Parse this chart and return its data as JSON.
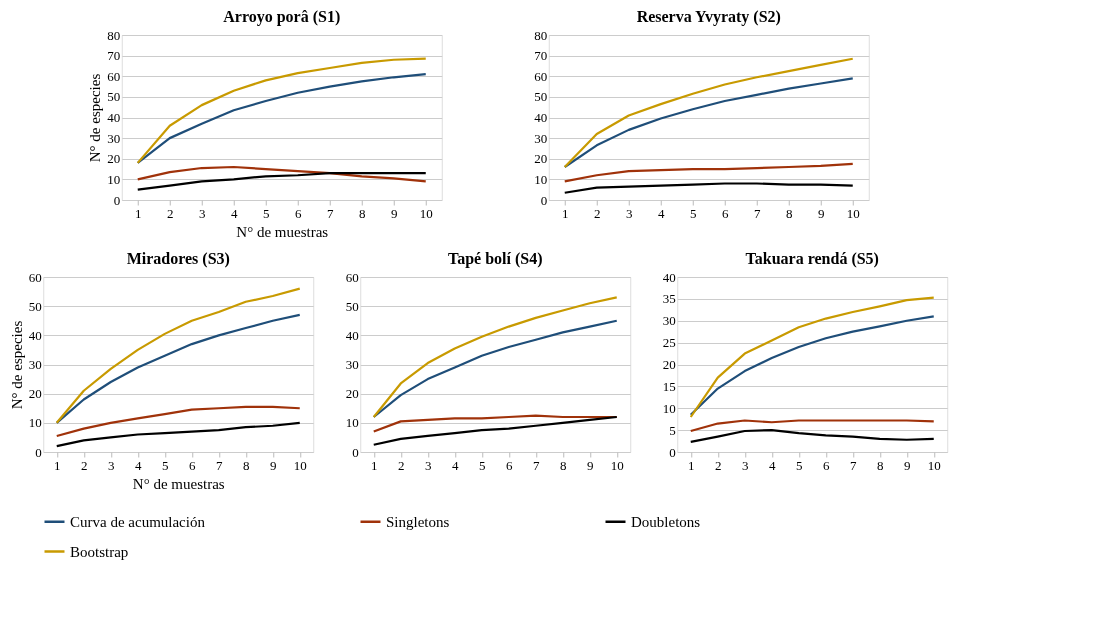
{
  "chart_data": [
    {
      "type": "line",
      "title": "Arroyo  porâ (S1)",
      "xlabel": "N° de muestras",
      "ylabel": "N° de especies",
      "categories": [
        "1",
        "2",
        "3",
        "4",
        "5",
        "6",
        "7",
        "8",
        "9",
        "10"
      ],
      "ylim": [
        0,
        80
      ],
      "yticks": [
        0,
        10,
        20,
        30,
        40,
        50,
        60,
        70,
        80
      ],
      "grid": "y",
      "legend": "bottom",
      "marker": "none",
      "line_style": "solid",
      "series": [
        {
          "name": "Curva de acumulación",
          "color": "#1f4e79",
          "values": [
            18,
            30,
            37,
            43.5,
            48,
            52,
            55,
            57.5,
            59.5,
            61
          ]
        },
        {
          "name": "Singletons",
          "color": "#a0320a",
          "values": [
            10,
            13.5,
            15.5,
            16,
            15,
            14,
            13,
            11.5,
            10.5,
            9
          ]
        },
        {
          "name": "Doubletons",
          "color": "#000000",
          "values": [
            5,
            7,
            9,
            10,
            11.5,
            12,
            13,
            13,
            13,
            13
          ]
        },
        {
          "name": "Bootstrap",
          "color": "#c89a00",
          "values": [
            18,
            36,
            46,
            53,
            58,
            61.5,
            64,
            66.5,
            68,
            68.5
          ]
        }
      ]
    },
    {
      "type": "line",
      "title": "Reserva Yvyraty  (S2)",
      "categories": [
        "1",
        "2",
        "3",
        "4",
        "5",
        "6",
        "7",
        "8",
        "9",
        "10"
      ],
      "ylim": [
        0,
        80
      ],
      "yticks": [
        0,
        10,
        20,
        30,
        40,
        50,
        60,
        70,
        80
      ],
      "grid": "y",
      "legend": "bottom",
      "marker": "none",
      "line_style": "solid",
      "series": [
        {
          "name": "Curva de acumulación",
          "color": "#1f4e79",
          "values": [
            16,
            26.5,
            34,
            39.5,
            44,
            48,
            51,
            54,
            56.5,
            59
          ]
        },
        {
          "name": "Singletons",
          "color": "#a0320a",
          "values": [
            9,
            12,
            14,
            14.5,
            15,
            15,
            15.5,
            16,
            16.5,
            17.5
          ]
        },
        {
          "name": "Doubletons",
          "color": "#000000",
          "values": [
            3.5,
            6,
            6.5,
            7,
            7.5,
            8,
            8,
            7.5,
            7.5,
            7
          ]
        },
        {
          "name": "Bootstrap",
          "color": "#c89a00",
          "values": [
            16,
            32,
            41,
            46.5,
            51.5,
            56,
            59.5,
            62.5,
            65.5,
            68.5
          ]
        }
      ]
    },
    {
      "type": "line",
      "title": "Miradores  (S3)",
      "xlabel": "N° de muestras",
      "ylabel": "N° de especies",
      "categories": [
        "1",
        "2",
        "3",
        "4",
        "5",
        "6",
        "7",
        "8",
        "9",
        "10"
      ],
      "ylim": [
        0,
        60
      ],
      "yticks": [
        0,
        10,
        20,
        30,
        40,
        50,
        60
      ],
      "grid": "y",
      "legend": "bottom",
      "marker": "none",
      "line_style": "solid",
      "series": [
        {
          "name": "Curva de acumulación",
          "color": "#1f4e79",
          "values": [
            10,
            18,
            24,
            29,
            33,
            37,
            40,
            42.5,
            45,
            47
          ]
        },
        {
          "name": "Singletons",
          "color": "#a0320a",
          "values": [
            5.5,
            8,
            10,
            11.5,
            13,
            14.5,
            15,
            15.5,
            15.5,
            15
          ]
        },
        {
          "name": "Doubletons",
          "color": "#000000",
          "values": [
            2,
            4,
            5,
            6,
            6.5,
            7,
            7.5,
            8.5,
            9,
            10
          ]
        },
        {
          "name": "Bootstrap",
          "color": "#c89a00",
          "values": [
            10,
            21,
            28.5,
            35,
            40.5,
            45,
            48,
            51.5,
            53.5,
            56
          ]
        }
      ]
    },
    {
      "type": "line",
      "title": "Tapé bolí (S4)",
      "categories": [
        "1",
        "2",
        "3",
        "4",
        "5",
        "6",
        "7",
        "8",
        "9",
        "10"
      ],
      "ylim": [
        0,
        60
      ],
      "yticks": [
        0,
        10,
        20,
        30,
        40,
        50,
        60
      ],
      "grid": "y",
      "legend": "bottom",
      "marker": "none",
      "line_style": "solid",
      "series": [
        {
          "name": "Curva de acumulación",
          "color": "#1f4e79",
          "values": [
            12,
            19.5,
            25,
            29,
            33,
            36,
            38.5,
            41,
            43,
            45
          ]
        },
        {
          "name": "Singletons",
          "color": "#a0320a",
          "values": [
            7,
            10.5,
            11,
            11.5,
            11.5,
            12,
            12.5,
            12,
            12,
            12
          ]
        },
        {
          "name": "Doubletons",
          "color": "#000000",
          "values": [
            2.5,
            4.5,
            5.5,
            6.5,
            7.5,
            8,
            9,
            10,
            11,
            12
          ]
        },
        {
          "name": "Bootstrap",
          "color": "#c89a00",
          "values": [
            12,
            23.5,
            30.5,
            35.5,
            39.5,
            43,
            46,
            48.5,
            51,
            53
          ]
        }
      ]
    },
    {
      "type": "line",
      "title": "Takuara rendá (S5)",
      "categories": [
        "1",
        "2",
        "3",
        "4",
        "5",
        "6",
        "7",
        "8",
        "9",
        "10"
      ],
      "ylim": [
        0,
        40
      ],
      "yticks": [
        0,
        5,
        10,
        15,
        20,
        25,
        30,
        35,
        40
      ],
      "grid": "y",
      "legend": "bottom",
      "marker": "none",
      "line_style": "solid",
      "series": [
        {
          "name": "Curva de acumulación",
          "color": "#1f4e79",
          "values": [
            8.5,
            14.5,
            18.5,
            21.5,
            24,
            26,
            27.5,
            28.7,
            30,
            31
          ]
        },
        {
          "name": "Singletons",
          "color": "#a0320a",
          "values": [
            4.8,
            6.5,
            7.2,
            6.8,
            7.2,
            7.2,
            7.2,
            7.2,
            7.2,
            7
          ]
        },
        {
          "name": "Doubletons",
          "color": "#000000",
          "values": [
            2.3,
            3.5,
            4.8,
            5,
            4.3,
            3.8,
            3.5,
            3,
            2.8,
            3
          ]
        },
        {
          "name": "Bootstrap",
          "color": "#c89a00",
          "values": [
            8,
            17,
            22.5,
            25.5,
            28.5,
            30.5,
            32,
            33.3,
            34.7,
            35.3
          ]
        }
      ]
    }
  ]
}
